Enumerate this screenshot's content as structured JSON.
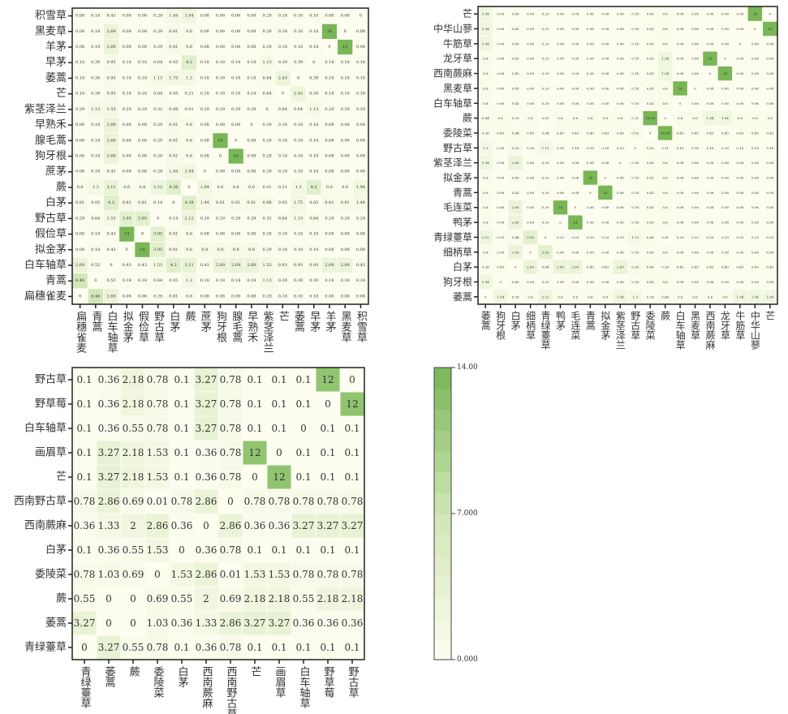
{
  "chart_data": [
    {
      "type": "heatmap",
      "y_labels": [
        "积雪草",
        "黑麦草",
        "羊茅",
        "早茅",
        "萎蒿",
        "芒",
        "紫茎泽兰",
        "早熟禾",
        "腺毛蒿",
        "狗牙根",
        "蔗茅",
        "蕨",
        "白茅",
        "野古草",
        "假俭草",
        "拟金茅",
        "白车轴草",
        "青蒿",
        "扁穗雀麦"
      ],
      "x_labels": [
        "扁穗雀麦",
        "青蒿",
        "白车轴草",
        "拟金茅",
        "假俭草",
        "野古草",
        "白茅",
        "蕨",
        "蔗茅",
        "狗牙根",
        "腺毛蒿",
        "早熟禾",
        "紫茎泽兰",
        "芒",
        "萎蒿",
        "早茅",
        "羊茅",
        "黑麦草",
        "积雪草"
      ],
      "values": [
        [
          0.08,
          0.18,
          0.43,
          0.08,
          0.08,
          0.29,
          1.44,
          1.94,
          0.08,
          0.08,
          0.08,
          0.08,
          0.29,
          0.18,
          0.18,
          0.18,
          0.08,
          0.08,
          0
        ],
        [
          0.08,
          0.18,
          2.69,
          0.08,
          0.08,
          0.29,
          0.81,
          0.6,
          0.08,
          0.08,
          0.08,
          0.08,
          0.29,
          0.18,
          0.18,
          0.18,
          14,
          0,
          0.08
        ],
        [
          0.08,
          0.18,
          2.69,
          0.08,
          0.08,
          0.29,
          0.81,
          0.6,
          0.08,
          0.08,
          0.08,
          0.08,
          0.29,
          0.18,
          0.18,
          0.18,
          0,
          14,
          0.08
        ],
        [
          0.18,
          0.39,
          0.93,
          0.18,
          0.18,
          0.64,
          0.05,
          4.2,
          0.18,
          0.18,
          0.18,
          0.18,
          1.13,
          0.39,
          0.39,
          0,
          0.18,
          0.18,
          0.18
        ],
        [
          0.18,
          0.39,
          0.93,
          0.18,
          0.18,
          1.13,
          1.75,
          1.3,
          0.18,
          0.18,
          0.18,
          0.18,
          0.64,
          2.43,
          0,
          0.39,
          0.18,
          0.18,
          0.18
        ],
        [
          0.18,
          0.39,
          0.93,
          0.18,
          0.18,
          0.64,
          0.05,
          0.21,
          0.18,
          0.18,
          0.18,
          0.18,
          0.64,
          0,
          2.43,
          0.39,
          0.18,
          0.18,
          0.18
        ],
        [
          0.29,
          1.13,
          1.53,
          0.29,
          0.29,
          0.32,
          0.88,
          0.01,
          0.29,
          0.29,
          0.29,
          0.29,
          0,
          0.64,
          0.64,
          1.13,
          0.29,
          0.29,
          0.29
        ],
        [
          0.08,
          0.18,
          2.69,
          0.08,
          0.08,
          0.29,
          0.81,
          0.6,
          0.08,
          0.08,
          0.08,
          0,
          0.29,
          0.18,
          0.18,
          0.18,
          0.08,
          0.08,
          0.08
        ],
        [
          0.08,
          0.18,
          2.69,
          0.08,
          0.08,
          0.29,
          0.81,
          0.6,
          0.08,
          14,
          0,
          0.08,
          0.29,
          0.18,
          0.18,
          0.18,
          0.08,
          0.08,
          0.08
        ],
        [
          0.08,
          0.18,
          2.69,
          0.08,
          0.08,
          0.29,
          0.81,
          0.6,
          0.08,
          0,
          14,
          0.08,
          0.29,
          0.18,
          0.18,
          0.18,
          0.08,
          0.08,
          0.08
        ],
        [
          0.08,
          0.18,
          0.43,
          0.08,
          0.08,
          0.29,
          1.44,
          1.94,
          0,
          0.08,
          0.08,
          0.08,
          0.29,
          0.18,
          0.18,
          0.18,
          0.08,
          0.08,
          0.08
        ],
        [
          0.6,
          1.3,
          3.11,
          0.6,
          0.6,
          2.12,
          4.38,
          0,
          1.94,
          0.6,
          0.6,
          0.6,
          0.01,
          0.21,
          1.3,
          4.2,
          0.6,
          0.6,
          1.94
        ],
        [
          0.81,
          0.05,
          4.2,
          0.81,
          0.81,
          0.14,
          0,
          4.38,
          1.44,
          0.81,
          0.81,
          0.81,
          0.88,
          0.05,
          1.75,
          0.05,
          0.81,
          0.81,
          1.44
        ],
        [
          0.29,
          0.64,
          1.53,
          3.95,
          3.95,
          0,
          0.14,
          2.12,
          0.29,
          0.29,
          0.29,
          0.29,
          0.32,
          0.64,
          1.13,
          0.64,
          0.29,
          0.29,
          0.29
        ],
        [
          0.08,
          0.18,
          0.43,
          14,
          0,
          3.95,
          0.81,
          0.6,
          0.08,
          0.08,
          0.08,
          0.08,
          0.29,
          0.18,
          0.18,
          0.18,
          0.08,
          0.08,
          0.08
        ],
        [
          0.08,
          0.18,
          0.43,
          0,
          14,
          3.95,
          0.81,
          0.6,
          0.8,
          0.8,
          0.8,
          0.8,
          0.29,
          0.18,
          0.18,
          0.18,
          0.08,
          0.08,
          0.08
        ],
        [
          2.69,
          0.53,
          0,
          0.43,
          0.43,
          1.53,
          4.2,
          3.11,
          0.43,
          2.69,
          2.69,
          2.69,
          1.53,
          0.93,
          0.93,
          0.93,
          2.69,
          2.69,
          0.43
        ],
        [
          6.46,
          0,
          0.53,
          0.18,
          0.18,
          0.64,
          0.05,
          1.3,
          0.18,
          0.18,
          0.18,
          0.18,
          1.13,
          0.39,
          0.39,
          0.39,
          0.18,
          0.18,
          0.18
        ],
        [
          0,
          6.46,
          2.69,
          0.08,
          0.08,
          0.29,
          0.81,
          0.6,
          0.08,
          0.08,
          0.08,
          0.08,
          0.29,
          0.18,
          0.18,
          0.18,
          0.08,
          0.08,
          0.08
        ]
      ]
    },
    {
      "type": "heatmap",
      "y_labels": [
        "芒",
        "中华山蓼",
        "牛筋草",
        "龙牙草",
        "西南蕨麻",
        "黑麦草",
        "白车轴草",
        "蕨",
        "委陵菜",
        "野古草",
        "紫茎泽兰",
        "拟金茅",
        "青蒿",
        "毛连菜",
        "鸭茅",
        "青绿薹草",
        "细柄草",
        "白茅",
        "狗牙根",
        "萎蒿"
      ],
      "x_labels": [
        "萎蒿",
        "狗牙根",
        "白茅",
        "细柄草",
        "青绿薹草",
        "鸭茅",
        "毛连菜",
        "青蒿",
        "拟金茅",
        "紫茎泽兰",
        "野古草",
        "委陵菜",
        "蕨",
        "白车轴草",
        "黑麦草",
        "西南蕨麻",
        "龙牙草",
        "牛筋草",
        "中华山蓼",
        "芒"
      ],
      "values": [
        [
          1.94,
          0.08,
          0.43,
          0.08,
          0.29,
          0.08,
          0.08,
          0.08,
          0.08,
          0.08,
          0.18,
          0.43,
          0.6,
          0.08,
          0.08,
          0.08,
          0.08,
          0.08,
          14,
          0
        ],
        [
          1.94,
          0.08,
          0.43,
          0.08,
          0.29,
          0.08,
          0.08,
          0.08,
          0.08,
          0.08,
          0.18,
          0.43,
          0.6,
          0.08,
          0.08,
          0.08,
          0.08,
          0.08,
          0,
          14
        ],
        [
          1.94,
          0.08,
          0.43,
          0.08,
          0.29,
          0.08,
          0.08,
          0.08,
          0.08,
          0.08,
          0.18,
          0.43,
          0.6,
          0.08,
          0.08,
          0.08,
          0.08,
          0,
          0.08,
          0.08
        ],
        [
          0.6,
          0.08,
          0.43,
          0.08,
          0.29,
          0.08,
          0.08,
          0.08,
          0.08,
          0.08,
          0.18,
          0.43,
          1.94,
          0.08,
          0.08,
          14,
          0,
          0.08,
          0.08,
          0.08
        ],
        [
          0.6,
          0.08,
          0.43,
          0.08,
          0.29,
          0.08,
          0.08,
          0.08,
          0.08,
          0.08,
          0.18,
          0.43,
          1.94,
          0.08,
          0.08,
          0,
          14,
          0.08,
          0.08,
          0.08
        ],
        [
          0.6,
          0.08,
          0.43,
          0.08,
          0.29,
          0.08,
          0.08,
          0.08,
          0.08,
          0.08,
          0.18,
          0.43,
          0.6,
          14,
          0,
          0.08,
          0.08,
          0.08,
          0.08,
          0.08
        ],
        [
          0.6,
          0.08,
          0.43,
          0.08,
          0.29,
          0.08,
          0.08,
          0.08,
          0.08,
          0.08,
          0.18,
          0.43,
          0.6,
          0,
          0.08,
          0.08,
          0.08,
          0.08,
          0.08,
          0.08
        ],
        [
          0.64,
          0.6,
          0.29,
          0.6,
          0.01,
          0.6,
          0.6,
          0.6,
          0.6,
          0.6,
          0.21,
          18.08,
          0,
          0.6,
          0.6,
          1.94,
          1.94,
          0.6,
          0.6,
          0.6
        ],
        [
          0.28,
          0.43,
          0.64,
          0.43,
          0.04,
          0.43,
          0.43,
          0.43,
          0.43,
          0.43,
          0.53,
          0,
          18.08,
          0.43,
          0.43,
          0.43,
          0.43,
          0.43,
          0.43,
          0.43
        ],
        [
          1.3,
          0.18,
          0.93,
          0.18,
          1.13,
          0.18,
          0.18,
          0.18,
          0.18,
          0.18,
          0,
          0.53,
          0.21,
          0.18,
          0.18,
          0.18,
          0.18,
          0.18,
          0.18,
          0.18
        ],
        [
          1.94,
          0.08,
          2.69,
          0.08,
          0.29,
          0.08,
          0.08,
          0.08,
          0.08,
          0,
          0.18,
          0.43,
          0.6,
          0.08,
          0.08,
          0.08,
          0.08,
          0.08,
          0.08,
          0.08
        ],
        [
          0.6,
          0.08,
          0.43,
          0.08,
          0.29,
          0.08,
          0.08,
          14,
          0,
          0.08,
          0.18,
          0.43,
          0.6,
          0.08,
          0.08,
          0.08,
          0.08,
          0.08,
          0.08,
          0.08
        ],
        [
          0.6,
          0.08,
          0.43,
          0.08,
          0.29,
          0.08,
          0.08,
          0,
          14,
          0.08,
          0.18,
          0.43,
          0.6,
          0.08,
          0.08,
          0.08,
          0.08,
          0.08,
          0.08,
          0.08
        ],
        [
          0.6,
          0.08,
          2.69,
          0.08,
          0.29,
          14,
          0,
          0.08,
          0.08,
          0.08,
          0.18,
          0.43,
          0.6,
          0.08,
          0.08,
          0.08,
          0.08,
          0.08,
          0.08,
          0.08
        ],
        [
          0.6,
          0.08,
          2.69,
          0.08,
          0.29,
          0,
          14,
          0.08,
          0.08,
          0.08,
          0.18,
          0.43,
          0.6,
          0.08,
          0.08,
          0.08,
          0.08,
          0.08,
          0.08,
          0.08
        ],
        [
          2.12,
          0.29,
          0.64,
          3.95,
          0,
          0.29,
          0.29,
          0.29,
          0.29,
          0.29,
          1.13,
          0.64,
          0.01,
          0.29,
          0.29,
          0.29,
          0.29,
          0.29,
          0.29,
          0.29
        ],
        [
          0.6,
          0.08,
          2.69,
          0,
          3.95,
          0.08,
          0.08,
          0.08,
          0.08,
          0.08,
          0.18,
          0.43,
          0.6,
          0.08,
          0.08,
          0.08,
          0.08,
          0.08,
          0.08,
          0.08
        ],
        [
          0.28,
          0.43,
          0,
          2.69,
          0.64,
          2.69,
          2.69,
          0.43,
          0.43,
          2.69,
          0.93,
          0.64,
          0.28,
          0.43,
          0.43,
          0.43,
          0.43,
          0.43,
          0.43,
          0.43
        ],
        [
          1.94,
          0,
          0.43,
          0.08,
          0.29,
          0.08,
          0.08,
          0.08,
          0.08,
          0.08,
          0.18,
          0.43,
          0.6,
          0.08,
          0.08,
          0.08,
          0.08,
          0.08,
          0.08,
          0.08
        ],
        [
          0,
          1.94,
          0.28,
          0.6,
          2.12,
          0.6,
          0.6,
          0.6,
          0.6,
          1.94,
          1.3,
          0.28,
          0.64,
          0.6,
          0.6,
          0.6,
          0.6,
          1.94,
          1.94,
          1.94
        ]
      ]
    },
    {
      "type": "heatmap",
      "y_labels": [
        "野古草",
        "野草莓",
        "白车轴草",
        "画眉草",
        "芒",
        "西南野古草",
        "西南蕨麻",
        "白茅",
        "委陵菜",
        "蕨",
        "萎蒿",
        "青绿薹草"
      ],
      "x_labels": [
        "青绿薹草",
        "萎蒿",
        "蕨",
        "委陵菜",
        "白茅",
        "西南蕨麻",
        "西南野古草",
        "芒",
        "画眉草",
        "白车轴草",
        "野草莓",
        "野古草"
      ],
      "values": [
        [
          0.1,
          0.36,
          2.18,
          0.78,
          0.1,
          3.27,
          0.78,
          0.1,
          0.1,
          0.1,
          12,
          0
        ],
        [
          0.1,
          0.36,
          2.18,
          0.78,
          0.1,
          3.27,
          0.78,
          0.1,
          0.1,
          0.1,
          0,
          12
        ],
        [
          0.1,
          0.36,
          0.55,
          0.78,
          0.1,
          3.27,
          0.78,
          0.1,
          0.1,
          0,
          0.1,
          0.1
        ],
        [
          0.1,
          3.27,
          2.18,
          1.53,
          0.1,
          0.36,
          0.78,
          12,
          0,
          0.1,
          0.1,
          0.1
        ],
        [
          0.1,
          3.27,
          2.18,
          1.53,
          0.1,
          0.36,
          0.78,
          0,
          12,
          0.1,
          0.1,
          0.1
        ],
        [
          0.78,
          2.86,
          0.69,
          0.01,
          0.78,
          2.86,
          0,
          0.78,
          0.78,
          0.78,
          0.78,
          0.78
        ],
        [
          0.36,
          1.33,
          2,
          2.86,
          0.36,
          0,
          2.86,
          0.36,
          0.36,
          3.27,
          3.27,
          3.27
        ],
        [
          0.1,
          0.36,
          0.55,
          1.53,
          0,
          0.36,
          0.78,
          0.1,
          0.1,
          0.1,
          0.1,
          0.1
        ],
        [
          0.78,
          1.03,
          0.69,
          0,
          1.53,
          2.86,
          0.01,
          1.53,
          1.53,
          0.78,
          0.78,
          0.78
        ],
        [
          0.55,
          0,
          0,
          0.69,
          0.55,
          2,
          0.69,
          2.18,
          2.18,
          0.55,
          2.18,
          2.18
        ],
        [
          3.27,
          0,
          0,
          1.03,
          0.36,
          1.33,
          2.86,
          3.27,
          3.27,
          0.36,
          0.36,
          0.36
        ],
        [
          0,
          3.27,
          0.55,
          0.78,
          0.1,
          0.36,
          0.78,
          0.1,
          0.1,
          0.1,
          0.1,
          0.1
        ]
      ]
    }
  ],
  "colorbar": {
    "min": 0,
    "max": 14,
    "tick_values": [
      14,
      7,
      0
    ],
    "tick_labels": [
      "14.00",
      "7.000",
      "0.000"
    ],
    "colors": {
      "low": "#fdfdf0",
      "mid": "#cfe6b4",
      "high": "#78b656"
    }
  }
}
